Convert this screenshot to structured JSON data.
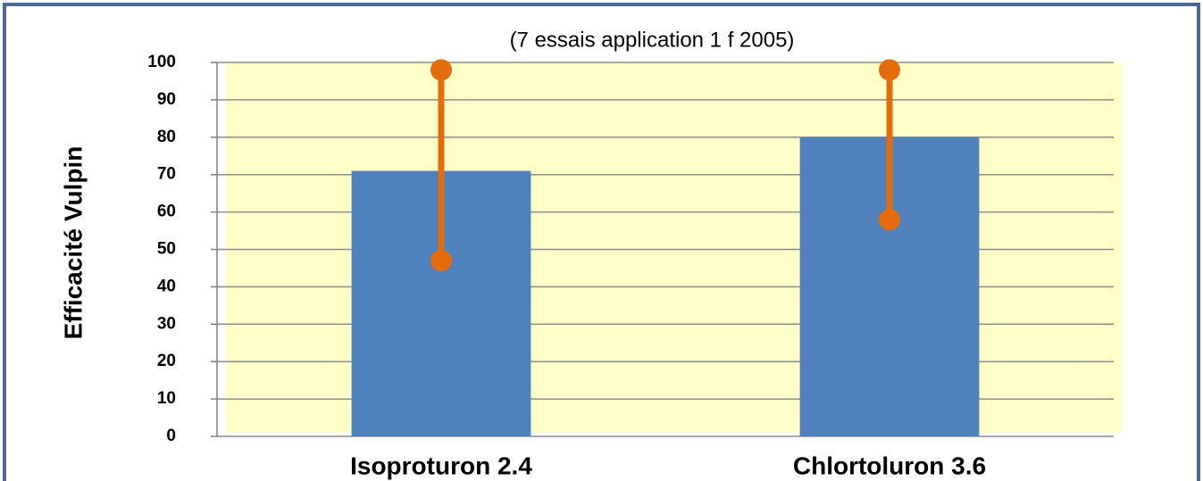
{
  "chart_data": {
    "type": "bar",
    "title": "(7 essais application 1 f 2005)",
    "y_label": "Efficacité Vulpin",
    "categories": [
      "Isoproturon 2.4",
      "Chlortoluron 3.6"
    ],
    "values": [
      71,
      80
    ],
    "color": "#4f81bd",
    "range": {
      "low": [
        47,
        58
      ],
      "high": [
        98,
        98
      ],
      "color": "#e46c0a"
    },
    "ylim": [
      0,
      100
    ],
    "yticks": [
      0,
      10,
      20,
      30,
      40,
      50,
      60,
      70,
      80,
      90,
      100
    ],
    "grid": true,
    "plot_background": "#ffffc8"
  }
}
